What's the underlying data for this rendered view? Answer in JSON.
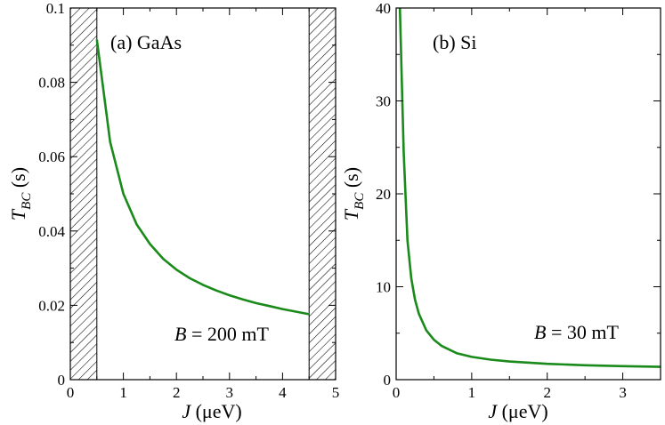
{
  "chart_data": [
    {
      "type": "line",
      "panel_label": "(a) GaAs",
      "annotation": {
        "prefix": "B",
        "suffix": " = 200 mT"
      },
      "xlabel": {
        "italic": "J",
        "rest": " (μeV)"
      },
      "ylabel": {
        "main": "T",
        "sub": "BC",
        "rest": " (s)"
      },
      "xlim": [
        0,
        5
      ],
      "ylim": [
        0,
        0.1
      ],
      "xticks": [
        0,
        1,
        2,
        3,
        4,
        5
      ],
      "yticks": [
        0,
        0.02,
        0.04,
        0.06,
        0.08,
        0.1
      ],
      "xtick_labels": [
        "0",
        "1",
        "2",
        "3",
        "4",
        "5"
      ],
      "ytick_labels": [
        "0",
        "0.02",
        "0.04",
        "0.06",
        "0.08",
        "0.1"
      ],
      "hatched_regions": [
        [
          0,
          0.5
        ],
        [
          4.5,
          5
        ]
      ],
      "line_color": "#1a8a1a",
      "series": [
        {
          "x": [
            0.5,
            0.75,
            1.0,
            1.25,
            1.5,
            1.75,
            2.0,
            2.25,
            2.5,
            2.75,
            3.0,
            3.25,
            3.5,
            3.75,
            4.0,
            4.25,
            4.5
          ],
          "values": [
            0.0915,
            0.064,
            0.05,
            0.0418,
            0.0365,
            0.0325,
            0.0296,
            0.0273,
            0.0255,
            0.024,
            0.0227,
            0.0216,
            0.0206,
            0.0198,
            0.019,
            0.0183,
            0.0176
          ]
        }
      ]
    },
    {
      "type": "line",
      "panel_label": "(b) Si",
      "annotation": {
        "prefix": "B",
        "suffix": " = 30 mT"
      },
      "xlabel": {
        "italic": "J",
        "rest": " (μeV)"
      },
      "ylabel": {
        "main": "T",
        "sub": "BC",
        "rest": " (s)"
      },
      "xlim": [
        0,
        3.5
      ],
      "ylim": [
        0,
        40
      ],
      "xticks": [
        0,
        1,
        2,
        3
      ],
      "yticks": [
        0,
        10,
        20,
        30,
        40
      ],
      "xtick_labels": [
        "0",
        "1",
        "2",
        "3"
      ],
      "ytick_labels": [
        "0",
        "10",
        "20",
        "30",
        "40"
      ],
      "hatched_regions": [],
      "line_color": "#1a8a1a",
      "series": [
        {
          "x": [
            0.05,
            0.08,
            0.1,
            0.15,
            0.2,
            0.25,
            0.3,
            0.4,
            0.5,
            0.6,
            0.8,
            1.0,
            1.25,
            1.5,
            2.0,
            2.5,
            3.0,
            3.5
          ],
          "values": [
            40.0,
            30.5,
            24.4,
            15.0,
            10.9,
            8.6,
            7.1,
            5.3,
            4.3,
            3.65,
            2.85,
            2.45,
            2.15,
            1.95,
            1.7,
            1.55,
            1.45,
            1.38
          ]
        }
      ]
    }
  ]
}
